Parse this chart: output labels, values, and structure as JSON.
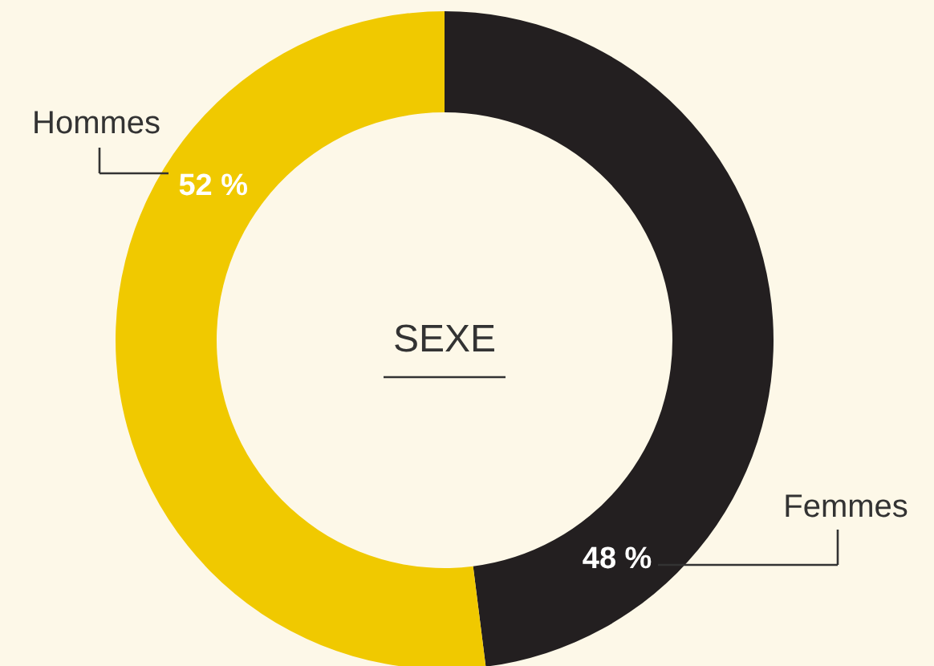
{
  "chart_data": {
    "type": "donut",
    "title": "SEXE",
    "categories": [
      "Femmes",
      "Hommes"
    ],
    "values": [
      48,
      52
    ],
    "colors": [
      "#231f20",
      "#f0c900"
    ],
    "value_labels": [
      "48 %",
      "52 %"
    ]
  }
}
